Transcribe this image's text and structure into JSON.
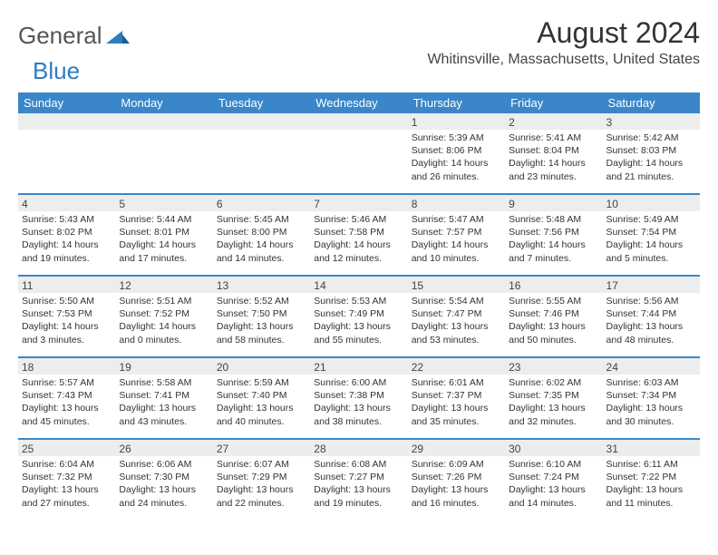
{
  "logo": {
    "text_general": "General",
    "text_blue": "Blue"
  },
  "header": {
    "month_title": "August 2024",
    "location": "Whitinsville, Massachusetts, United States"
  },
  "colors": {
    "header_bar": "#3a86c8",
    "daynum_bg": "#eceded",
    "week_border": "#3a86c8",
    "text": "#333333"
  },
  "weekdays": [
    "Sunday",
    "Monday",
    "Tuesday",
    "Wednesday",
    "Thursday",
    "Friday",
    "Saturday"
  ],
  "weeks": [
    [
      {
        "day": "",
        "sunrise": "",
        "sunset": "",
        "daylight": ""
      },
      {
        "day": "",
        "sunrise": "",
        "sunset": "",
        "daylight": ""
      },
      {
        "day": "",
        "sunrise": "",
        "sunset": "",
        "daylight": ""
      },
      {
        "day": "",
        "sunrise": "",
        "sunset": "",
        "daylight": ""
      },
      {
        "day": "1",
        "sunrise": "Sunrise: 5:39 AM",
        "sunset": "Sunset: 8:06 PM",
        "daylight": "Daylight: 14 hours and 26 minutes."
      },
      {
        "day": "2",
        "sunrise": "Sunrise: 5:41 AM",
        "sunset": "Sunset: 8:04 PM",
        "daylight": "Daylight: 14 hours and 23 minutes."
      },
      {
        "day": "3",
        "sunrise": "Sunrise: 5:42 AM",
        "sunset": "Sunset: 8:03 PM",
        "daylight": "Daylight: 14 hours and 21 minutes."
      }
    ],
    [
      {
        "day": "4",
        "sunrise": "Sunrise: 5:43 AM",
        "sunset": "Sunset: 8:02 PM",
        "daylight": "Daylight: 14 hours and 19 minutes."
      },
      {
        "day": "5",
        "sunrise": "Sunrise: 5:44 AM",
        "sunset": "Sunset: 8:01 PM",
        "daylight": "Daylight: 14 hours and 17 minutes."
      },
      {
        "day": "6",
        "sunrise": "Sunrise: 5:45 AM",
        "sunset": "Sunset: 8:00 PM",
        "daylight": "Daylight: 14 hours and 14 minutes."
      },
      {
        "day": "7",
        "sunrise": "Sunrise: 5:46 AM",
        "sunset": "Sunset: 7:58 PM",
        "daylight": "Daylight: 14 hours and 12 minutes."
      },
      {
        "day": "8",
        "sunrise": "Sunrise: 5:47 AM",
        "sunset": "Sunset: 7:57 PM",
        "daylight": "Daylight: 14 hours and 10 minutes."
      },
      {
        "day": "9",
        "sunrise": "Sunrise: 5:48 AM",
        "sunset": "Sunset: 7:56 PM",
        "daylight": "Daylight: 14 hours and 7 minutes."
      },
      {
        "day": "10",
        "sunrise": "Sunrise: 5:49 AM",
        "sunset": "Sunset: 7:54 PM",
        "daylight": "Daylight: 14 hours and 5 minutes."
      }
    ],
    [
      {
        "day": "11",
        "sunrise": "Sunrise: 5:50 AM",
        "sunset": "Sunset: 7:53 PM",
        "daylight": "Daylight: 14 hours and 3 minutes."
      },
      {
        "day": "12",
        "sunrise": "Sunrise: 5:51 AM",
        "sunset": "Sunset: 7:52 PM",
        "daylight": "Daylight: 14 hours and 0 minutes."
      },
      {
        "day": "13",
        "sunrise": "Sunrise: 5:52 AM",
        "sunset": "Sunset: 7:50 PM",
        "daylight": "Daylight: 13 hours and 58 minutes."
      },
      {
        "day": "14",
        "sunrise": "Sunrise: 5:53 AM",
        "sunset": "Sunset: 7:49 PM",
        "daylight": "Daylight: 13 hours and 55 minutes."
      },
      {
        "day": "15",
        "sunrise": "Sunrise: 5:54 AM",
        "sunset": "Sunset: 7:47 PM",
        "daylight": "Daylight: 13 hours and 53 minutes."
      },
      {
        "day": "16",
        "sunrise": "Sunrise: 5:55 AM",
        "sunset": "Sunset: 7:46 PM",
        "daylight": "Daylight: 13 hours and 50 minutes."
      },
      {
        "day": "17",
        "sunrise": "Sunrise: 5:56 AM",
        "sunset": "Sunset: 7:44 PM",
        "daylight": "Daylight: 13 hours and 48 minutes."
      }
    ],
    [
      {
        "day": "18",
        "sunrise": "Sunrise: 5:57 AM",
        "sunset": "Sunset: 7:43 PM",
        "daylight": "Daylight: 13 hours and 45 minutes."
      },
      {
        "day": "19",
        "sunrise": "Sunrise: 5:58 AM",
        "sunset": "Sunset: 7:41 PM",
        "daylight": "Daylight: 13 hours and 43 minutes."
      },
      {
        "day": "20",
        "sunrise": "Sunrise: 5:59 AM",
        "sunset": "Sunset: 7:40 PM",
        "daylight": "Daylight: 13 hours and 40 minutes."
      },
      {
        "day": "21",
        "sunrise": "Sunrise: 6:00 AM",
        "sunset": "Sunset: 7:38 PM",
        "daylight": "Daylight: 13 hours and 38 minutes."
      },
      {
        "day": "22",
        "sunrise": "Sunrise: 6:01 AM",
        "sunset": "Sunset: 7:37 PM",
        "daylight": "Daylight: 13 hours and 35 minutes."
      },
      {
        "day": "23",
        "sunrise": "Sunrise: 6:02 AM",
        "sunset": "Sunset: 7:35 PM",
        "daylight": "Daylight: 13 hours and 32 minutes."
      },
      {
        "day": "24",
        "sunrise": "Sunrise: 6:03 AM",
        "sunset": "Sunset: 7:34 PM",
        "daylight": "Daylight: 13 hours and 30 minutes."
      }
    ],
    [
      {
        "day": "25",
        "sunrise": "Sunrise: 6:04 AM",
        "sunset": "Sunset: 7:32 PM",
        "daylight": "Daylight: 13 hours and 27 minutes."
      },
      {
        "day": "26",
        "sunrise": "Sunrise: 6:06 AM",
        "sunset": "Sunset: 7:30 PM",
        "daylight": "Daylight: 13 hours and 24 minutes."
      },
      {
        "day": "27",
        "sunrise": "Sunrise: 6:07 AM",
        "sunset": "Sunset: 7:29 PM",
        "daylight": "Daylight: 13 hours and 22 minutes."
      },
      {
        "day": "28",
        "sunrise": "Sunrise: 6:08 AM",
        "sunset": "Sunset: 7:27 PM",
        "daylight": "Daylight: 13 hours and 19 minutes."
      },
      {
        "day": "29",
        "sunrise": "Sunrise: 6:09 AM",
        "sunset": "Sunset: 7:26 PM",
        "daylight": "Daylight: 13 hours and 16 minutes."
      },
      {
        "day": "30",
        "sunrise": "Sunrise: 6:10 AM",
        "sunset": "Sunset: 7:24 PM",
        "daylight": "Daylight: 13 hours and 14 minutes."
      },
      {
        "day": "31",
        "sunrise": "Sunrise: 6:11 AM",
        "sunset": "Sunset: 7:22 PM",
        "daylight": "Daylight: 13 hours and 11 minutes."
      }
    ]
  ]
}
